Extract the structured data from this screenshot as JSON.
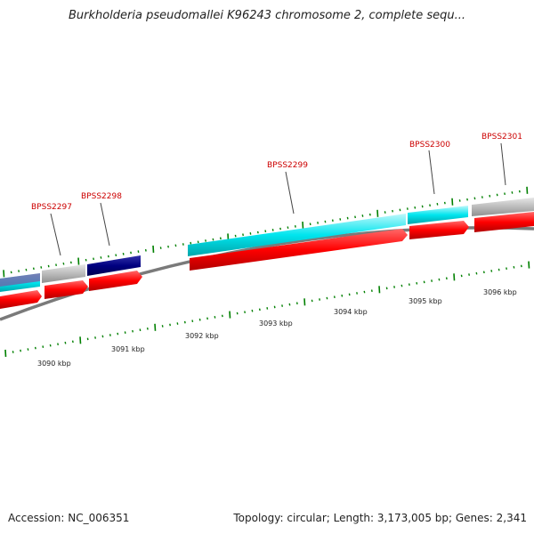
{
  "title": "Burkholderia pseudomallei K96243 chromosome 2, complete sequ...",
  "footer": {
    "accession": "Accession: NC_006351",
    "summary": "Topology: circular; Length: 3,173,005 bp; Genes: 2,341"
  },
  "scale_labels": [
    "3090 kbp",
    "3091 kbp",
    "3092 kbp",
    "3093 kbp",
    "3094 kbp",
    "3095 kbp",
    "3096 kbp"
  ],
  "gene_labels": [
    "BPSS2297",
    "BPSS2298",
    "BPSS2299",
    "BPSS2300",
    "BPSS2301"
  ],
  "colors": {
    "cds": "#ff0000",
    "feature_cyan": "#00e5ee",
    "feature_gray": "#bbbbbb",
    "feature_navy": "#000080",
    "tick": "#008000",
    "label": "#cc0000",
    "backbone": "#808080"
  }
}
